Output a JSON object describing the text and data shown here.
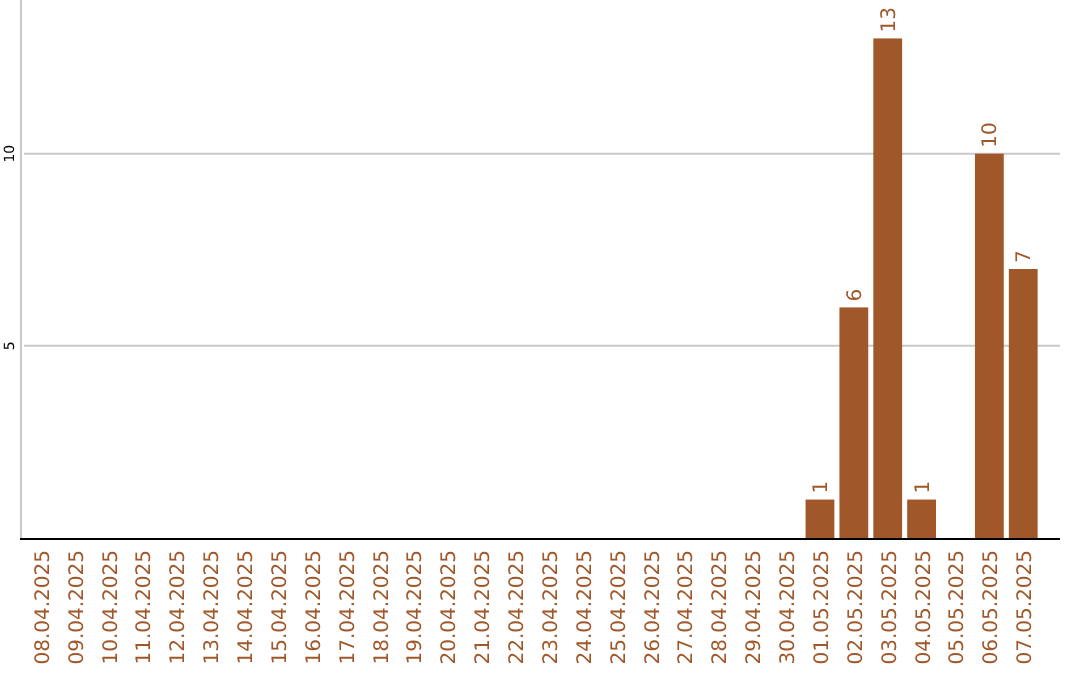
{
  "chart_data": {
    "type": "bar",
    "categories": [
      "08.04.2025",
      "09.04.2025",
      "10.04.2025",
      "11.04.2025",
      "12.04.2025",
      "13.04.2025",
      "14.04.2025",
      "15.04.2025",
      "16.04.2025",
      "17.04.2025",
      "18.04.2025",
      "19.04.2025",
      "20.04.2025",
      "21.04.2025",
      "22.04.2025",
      "23.04.2025",
      "24.04.2025",
      "25.04.2025",
      "26.04.2025",
      "27.04.2025",
      "28.04.2025",
      "29.04.2025",
      "30.04.2025",
      "01.05.2025",
      "02.05.2025",
      "03.05.2025",
      "04.05.2025",
      "05.05.2025",
      "06.05.2025",
      "07.05.2025"
    ],
    "values": [
      0,
      0,
      0,
      0,
      0,
      0,
      0,
      0,
      0,
      0,
      0,
      0,
      0,
      0,
      0,
      0,
      0,
      0,
      0,
      0,
      0,
      0,
      0,
      1,
      6,
      13,
      1,
      0,
      10,
      7
    ],
    "value_labels": [
      null,
      null,
      null,
      null,
      null,
      null,
      null,
      null,
      null,
      null,
      null,
      null,
      null,
      null,
      null,
      null,
      null,
      null,
      null,
      null,
      null,
      null,
      null,
      "1",
      "6",
      "13",
      "1",
      null,
      "10",
      "7"
    ],
    "color": "#a0582a",
    "ylim": [
      0,
      14
    ],
    "yticks": [
      5,
      10
    ],
    "grid": "y"
  }
}
